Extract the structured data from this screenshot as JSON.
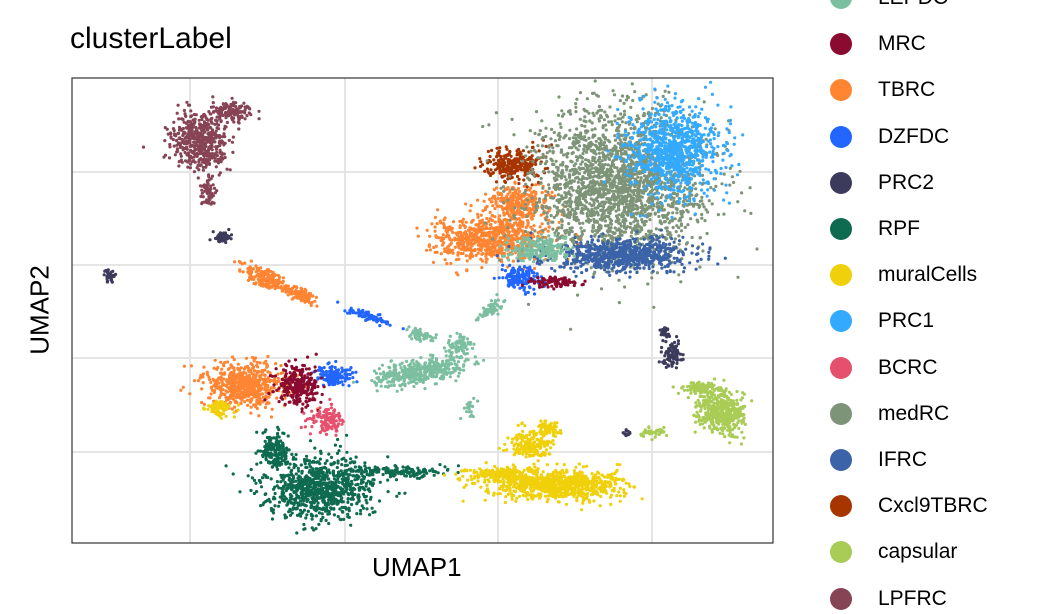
{
  "chart_data": {
    "type": "scatter",
    "title": "clusterLabel",
    "xlabel": "UMAP1",
    "ylabel": "UMAP2",
    "grid": true,
    "legend_placement": "right",
    "series": [
      {
        "name": "LEPDC",
        "color": "#7CBFA0"
      },
      {
        "name": "MRC",
        "color": "#8B0A2F"
      },
      {
        "name": "TBRC",
        "color": "#FF8533"
      },
      {
        "name": "DZFDC",
        "color": "#2266FF"
      },
      {
        "name": "PRC2",
        "color": "#3D3B5C"
      },
      {
        "name": "RPF",
        "color": "#0E6B4F"
      },
      {
        "name": "muralCells",
        "color": "#F0D00A"
      },
      {
        "name": "PRC1",
        "color": "#33AAFF"
      },
      {
        "name": "BCRC",
        "color": "#E5506E"
      },
      {
        "name": "medRC",
        "color": "#7E9478"
      },
      {
        "name": "IFRC",
        "color": "#3A63A8"
      },
      {
        "name": "Cxcl9TBRC",
        "color": "#A63500"
      },
      {
        "name": "capsular",
        "color": "#A8CC55"
      },
      {
        "name": "LPFRC",
        "color": "#874455"
      }
    ]
  }
}
